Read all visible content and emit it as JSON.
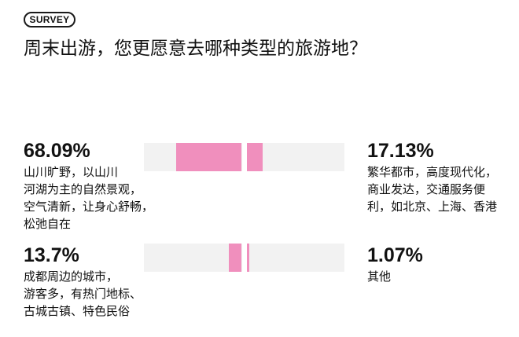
{
  "badge": "SURVEY",
  "title": "周末出游，您更愿意去哪种类型的旅游地？",
  "colors": {
    "accent": "#f08fbd",
    "track": "#f2f2f2",
    "text": "#111111"
  },
  "rows": [
    {
      "left": {
        "percent_label": "68.09%",
        "percent": 68.09,
        "lines": [
          "山川旷野，以山川",
          "河湖为主的自然景观，",
          "空气清新，让身心舒畅，",
          "松弛自在"
        ]
      },
      "right": {
        "percent_label": "17.13%",
        "percent": 17.13,
        "lines": [
          "繁华都市，高度现代化，",
          "商业发达，交通服务便",
          "利，如北京、上海、香港"
        ]
      }
    },
    {
      "left": {
        "percent_label": "13.7%",
        "percent": 13.7,
        "lines": [
          "成都周边的城市，",
          "游客多，有热门地标、",
          "古城古镇、特色民俗"
        ]
      },
      "right": {
        "percent_label": "1.07%",
        "percent": 1.07,
        "lines": [
          "其他"
        ]
      }
    }
  ]
}
